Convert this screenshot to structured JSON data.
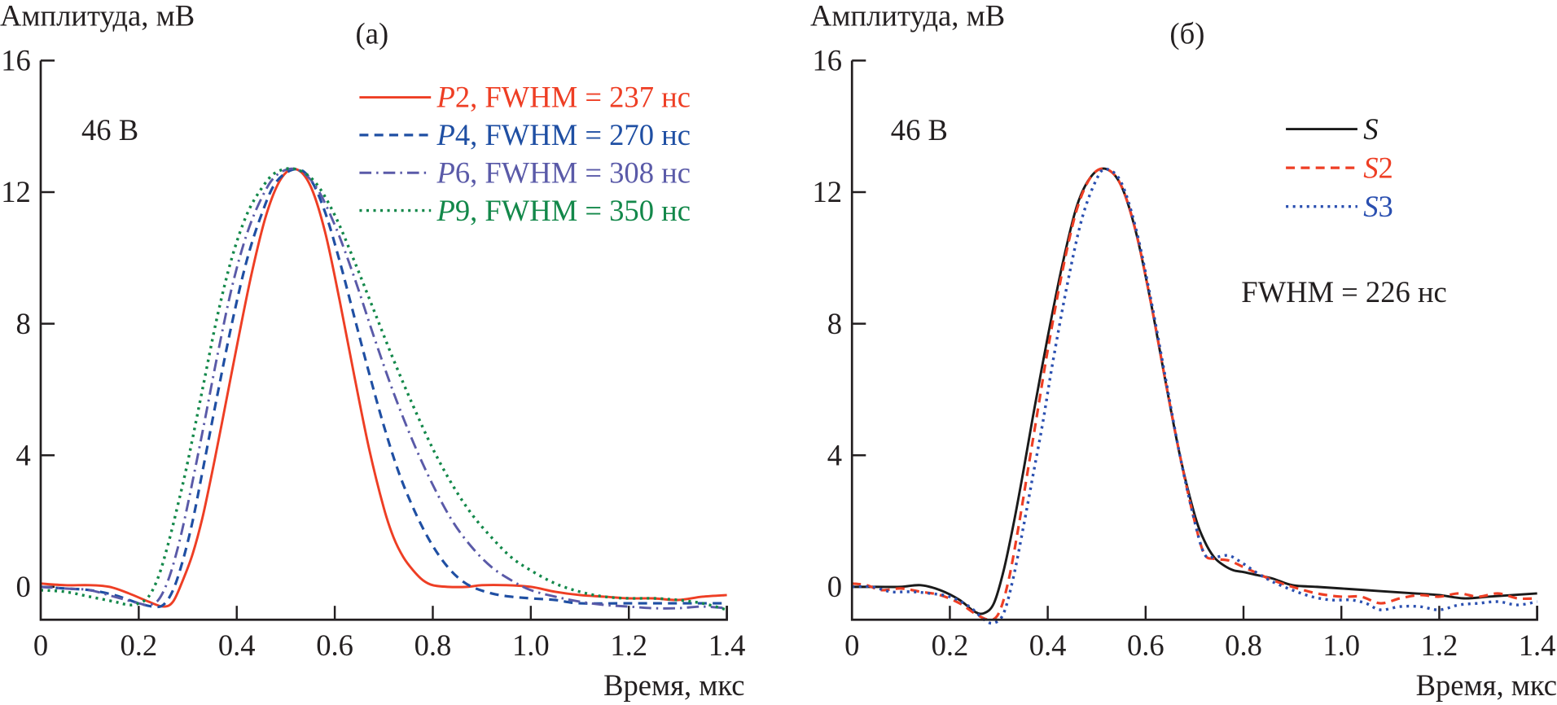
{
  "chart_data": [
    {
      "id": "a",
      "type": "line",
      "panel_label": "(a)",
      "ylabel": "Амплитуда, мВ",
      "xlabel": "Время, мкс",
      "annotation": "46 В",
      "xlim": [
        0,
        1.4
      ],
      "ylim": [
        -1,
        16
      ],
      "xticks": [
        0,
        0.2,
        0.4,
        0.6,
        0.8,
        1.0,
        1.2,
        1.4
      ],
      "xtick_labels": [
        "0",
        "0.2",
        "0.4",
        "0.6",
        "0.8",
        "1.0",
        "1.2",
        "1.4"
      ],
      "yticks": [
        0,
        4,
        8,
        12,
        16
      ],
      "ytick_labels": [
        "0",
        "4",
        "8",
        "12",
        "16"
      ],
      "grid": false,
      "legend_position": "top-right",
      "series": [
        {
          "name": "P2",
          "legend": {
            "italic": "P",
            "rest": "2, FWHM = 237 нс"
          },
          "color": "#ee3e24",
          "dash": "solid",
          "x": [
            0,
            0.05,
            0.1,
            0.14,
            0.18,
            0.22,
            0.25,
            0.27,
            0.29,
            0.31,
            0.33,
            0.35,
            0.37,
            0.4,
            0.43,
            0.46,
            0.49,
            0.52,
            0.55,
            0.58,
            0.61,
            0.64,
            0.67,
            0.7,
            0.72,
            0.74,
            0.76,
            0.78,
            0.8,
            0.83,
            0.87,
            0.9,
            0.95,
            1.0,
            1.05,
            1.1,
            1.15,
            1.2,
            1.25,
            1.3,
            1.35,
            1.4
          ],
          "y": [
            0.1,
            0.05,
            0.05,
            0.0,
            -0.2,
            -0.45,
            -0.6,
            -0.45,
            0.2,
            1.0,
            2.1,
            3.5,
            5.0,
            7.3,
            9.5,
            11.3,
            12.4,
            12.7,
            12.2,
            10.8,
            8.7,
            6.4,
            4.2,
            2.4,
            1.5,
            0.9,
            0.5,
            0.2,
            0.05,
            0.0,
            0.0,
            0.05,
            0.05,
            0.0,
            -0.15,
            -0.25,
            -0.3,
            -0.35,
            -0.35,
            -0.4,
            -0.3,
            -0.25
          ]
        },
        {
          "name": "P4",
          "legend": {
            "italic": "P",
            "rest": "4, FWHM = 270 нс"
          },
          "color": "#1f4fa3",
          "dash": "dashed",
          "x": [
            0,
            0.05,
            0.1,
            0.15,
            0.2,
            0.23,
            0.25,
            0.27,
            0.29,
            0.31,
            0.33,
            0.36,
            0.39,
            0.42,
            0.45,
            0.48,
            0.52,
            0.55,
            0.58,
            0.61,
            0.64,
            0.67,
            0.7,
            0.73,
            0.76,
            0.79,
            0.82,
            0.85,
            0.88,
            0.92,
            0.96,
            1.0,
            1.05,
            1.1,
            1.2,
            1.3,
            1.4
          ],
          "y": [
            0.0,
            -0.05,
            -0.1,
            -0.25,
            -0.5,
            -0.6,
            -0.55,
            -0.1,
            0.8,
            2.0,
            3.5,
            5.8,
            8.0,
            9.9,
            11.3,
            12.3,
            12.7,
            12.4,
            11.4,
            9.9,
            8.2,
            6.5,
            4.9,
            3.5,
            2.4,
            1.5,
            0.8,
            0.3,
            0.0,
            -0.2,
            -0.3,
            -0.35,
            -0.4,
            -0.5,
            -0.5,
            -0.5,
            -0.5
          ]
        },
        {
          "name": "P6",
          "legend": {
            "italic": "P",
            "rest": "6, FWHM = 308 нс"
          },
          "color": "#5a5aa8",
          "dash": "dashdot",
          "x": [
            0,
            0.05,
            0.1,
            0.15,
            0.2,
            0.22,
            0.24,
            0.26,
            0.28,
            0.3,
            0.33,
            0.36,
            0.39,
            0.42,
            0.45,
            0.48,
            0.52,
            0.56,
            0.6,
            0.64,
            0.68,
            0.72,
            0.76,
            0.8,
            0.84,
            0.88,
            0.92,
            0.96,
            1.0,
            1.05,
            1.1,
            1.15,
            1.2,
            1.25,
            1.3,
            1.35,
            1.4
          ],
          "y": [
            0.0,
            -0.05,
            -0.1,
            -0.3,
            -0.5,
            -0.55,
            -0.4,
            0.2,
            1.2,
            2.5,
            4.7,
            7.0,
            9.1,
            10.7,
            11.8,
            12.5,
            12.7,
            12.2,
            11.0,
            9.4,
            7.6,
            5.9,
            4.4,
            3.1,
            2.0,
            1.2,
            0.6,
            0.2,
            -0.1,
            -0.3,
            -0.45,
            -0.55,
            -0.6,
            -0.65,
            -0.65,
            -0.6,
            -0.65
          ]
        },
        {
          "name": "P9",
          "legend": {
            "italic": "P",
            "rest": "9, FWHM = 350 нс"
          },
          "color": "#13884a",
          "dash": "dotted",
          "x": [
            0,
            0.05,
            0.1,
            0.15,
            0.18,
            0.2,
            0.22,
            0.24,
            0.26,
            0.28,
            0.3,
            0.33,
            0.36,
            0.39,
            0.42,
            0.45,
            0.48,
            0.52,
            0.56,
            0.6,
            0.64,
            0.68,
            0.72,
            0.76,
            0.8,
            0.84,
            0.88,
            0.92,
            0.96,
            1.0,
            1.05,
            1.1,
            1.15,
            1.2,
            1.25,
            1.3,
            1.35,
            1.4
          ],
          "y": [
            -0.1,
            -0.15,
            -0.3,
            -0.45,
            -0.55,
            -0.5,
            -0.3,
            0.3,
            1.3,
            2.5,
            3.8,
            6.0,
            8.2,
            10.0,
            11.3,
            12.1,
            12.6,
            12.7,
            12.3,
            11.3,
            9.9,
            8.4,
            6.9,
            5.5,
            4.2,
            3.1,
            2.2,
            1.5,
            0.9,
            0.5,
            0.1,
            -0.15,
            -0.3,
            -0.35,
            -0.35,
            -0.4,
            -0.5,
            -0.7
          ]
        }
      ]
    },
    {
      "id": "b",
      "type": "line",
      "panel_label": "(б)",
      "ylabel": "Амплитуда, мВ",
      "xlabel": "Время, мкс",
      "annotation": "46 В",
      "annotation2": "FWHM = 226 нс",
      "xlim": [
        0,
        1.4
      ],
      "ylim": [
        -1,
        16
      ],
      "xticks": [
        0,
        0.2,
        0.4,
        0.6,
        0.8,
        1.0,
        1.2,
        1.4
      ],
      "xtick_labels": [
        "0",
        "0.2",
        "0.4",
        "0.6",
        "0.8",
        "1.0",
        "1.2",
        "1.4"
      ],
      "yticks": [
        0,
        4,
        8,
        12,
        16
      ],
      "ytick_labels": [
        "0",
        "4",
        "8",
        "12",
        "16"
      ],
      "grid": false,
      "legend_position": "top-right",
      "series": [
        {
          "name": "S",
          "legend": {
            "italic": "S",
            "rest": ""
          },
          "color": "#1a1a1a",
          "dash": "solid",
          "x": [
            0,
            0.05,
            0.1,
            0.14,
            0.18,
            0.22,
            0.25,
            0.27,
            0.29,
            0.31,
            0.33,
            0.35,
            0.37,
            0.4,
            0.43,
            0.46,
            0.49,
            0.52,
            0.55,
            0.58,
            0.61,
            0.64,
            0.67,
            0.7,
            0.72,
            0.74,
            0.76,
            0.78,
            0.8,
            0.83,
            0.86,
            0.9,
            0.95,
            1.0,
            1.05,
            1.1,
            1.15,
            1.2,
            1.25,
            1.3,
            1.35,
            1.4
          ],
          "y": [
            0.0,
            0.0,
            0.0,
            0.05,
            -0.1,
            -0.4,
            -0.75,
            -0.8,
            -0.5,
            0.5,
            1.9,
            3.5,
            5.2,
            7.6,
            9.8,
            11.6,
            12.5,
            12.7,
            12.2,
            10.8,
            8.7,
            6.3,
            4.0,
            2.2,
            1.4,
            0.9,
            0.65,
            0.5,
            0.45,
            0.35,
            0.25,
            0.05,
            0.0,
            -0.05,
            -0.1,
            -0.15,
            -0.2,
            -0.25,
            -0.35,
            -0.3,
            -0.25,
            -0.2
          ]
        },
        {
          "name": "S2",
          "legend": {
            "italic": "S",
            "rest": "2"
          },
          "color": "#ee3e24",
          "dash": "dashed",
          "x": [
            0,
            0.03,
            0.06,
            0.1,
            0.14,
            0.18,
            0.22,
            0.25,
            0.28,
            0.3,
            0.32,
            0.34,
            0.36,
            0.38,
            0.4,
            0.43,
            0.46,
            0.49,
            0.52,
            0.55,
            0.58,
            0.61,
            0.64,
            0.67,
            0.7,
            0.72,
            0.74,
            0.77,
            0.8,
            0.83,
            0.86,
            0.9,
            0.95,
            1.0,
            1.04,
            1.08,
            1.12,
            1.16,
            1.2,
            1.24,
            1.28,
            1.32,
            1.36,
            1.4
          ],
          "y": [
            0.1,
            0.05,
            -0.1,
            -0.05,
            -0.15,
            -0.25,
            -0.5,
            -0.8,
            -1.0,
            -0.8,
            0.2,
            1.8,
            3.6,
            5.4,
            7.2,
            9.6,
            11.5,
            12.5,
            12.7,
            12.2,
            10.8,
            8.7,
            6.3,
            4.0,
            2.0,
            1.0,
            0.85,
            0.8,
            0.6,
            0.4,
            0.2,
            0.0,
            -0.2,
            -0.3,
            -0.3,
            -0.5,
            -0.35,
            -0.25,
            -0.3,
            -0.2,
            -0.3,
            -0.2,
            -0.35,
            -0.35
          ]
        },
        {
          "name": "S3",
          "legend": {
            "italic": "S",
            "rest": "3"
          },
          "color": "#2a4fb0",
          "dash": "dotted",
          "x": [
            0,
            0.04,
            0.08,
            0.12,
            0.16,
            0.2,
            0.24,
            0.27,
            0.29,
            0.31,
            0.33,
            0.35,
            0.37,
            0.39,
            0.41,
            0.44,
            0.47,
            0.5,
            0.52,
            0.55,
            0.58,
            0.61,
            0.64,
            0.67,
            0.7,
            0.72,
            0.74,
            0.77,
            0.8,
            0.83,
            0.86,
            0.9,
            0.94,
            0.98,
            1.02,
            1.05,
            1.08,
            1.12,
            1.16,
            1.2,
            1.24,
            1.28,
            1.32,
            1.36,
            1.4
          ],
          "y": [
            0.0,
            0.0,
            -0.15,
            -0.15,
            -0.2,
            -0.3,
            -0.6,
            -1.0,
            -1.1,
            -0.8,
            0.3,
            1.8,
            3.4,
            5.0,
            6.8,
            9.2,
            11.2,
            12.4,
            12.7,
            12.3,
            10.9,
            8.8,
            6.4,
            4.0,
            2.0,
            1.0,
            0.9,
            0.95,
            0.7,
            0.4,
            0.15,
            -0.1,
            -0.3,
            -0.4,
            -0.4,
            -0.5,
            -0.7,
            -0.6,
            -0.6,
            -0.7,
            -0.55,
            -0.5,
            -0.45,
            -0.55,
            -0.45
          ]
        }
      ]
    }
  ]
}
